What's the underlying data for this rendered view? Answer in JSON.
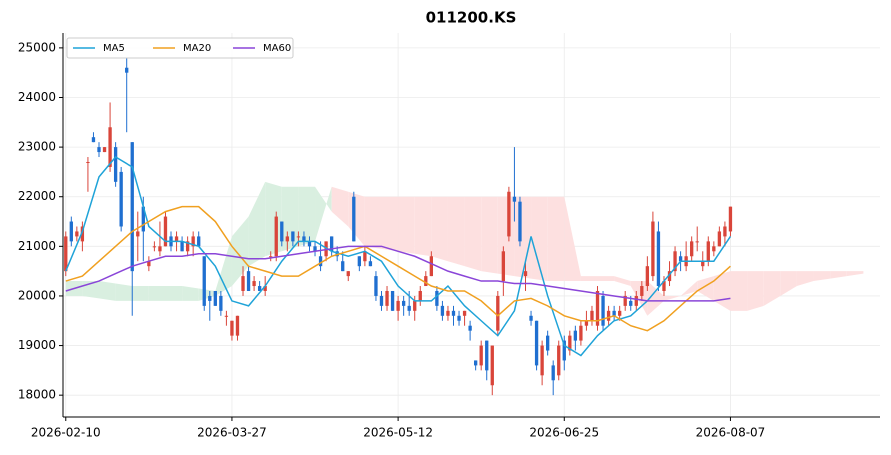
{
  "chart_data": {
    "type": "candlestick",
    "title": "011200.KS",
    "up_color": "#d9453a",
    "down_color": "#1f6fd0",
    "grid": true,
    "legend": "upper left",
    "xlim": [
      -0.5,
      147
    ],
    "ylim": [
      17560,
      25300
    ],
    "yticks": [
      18000,
      19000,
      20000,
      21000,
      22000,
      23000,
      24000,
      25000
    ],
    "xticks": [
      {
        "value": 0,
        "label": "2026-02-10"
      },
      {
        "value": 30,
        "label": "2026-03-27"
      },
      {
        "value": 60,
        "label": "2026-05-12"
      },
      {
        "value": 90,
        "label": "2026-06-25"
      },
      {
        "value": 120,
        "label": "2026-08-07"
      }
    ],
    "candles": [
      [
        20500,
        21300,
        20400,
        21200
      ],
      [
        21500,
        21600,
        21000,
        21100
      ],
      [
        21200,
        21400,
        21100,
        21300
      ],
      [
        21100,
        21500,
        20900,
        21400
      ],
      [
        22700,
        22800,
        22100,
        22700
      ],
      [
        23200,
        23300,
        23100,
        23100
      ],
      [
        23000,
        23100,
        22800,
        22900
      ],
      [
        22900,
        23000,
        22900,
        23000
      ],
      [
        22600,
        23900,
        22500,
        23400
      ],
      [
        23000,
        23100,
        22200,
        22300
      ],
      [
        22500,
        22600,
        21300,
        21400
      ],
      [
        24600,
        24800,
        23300,
        24500
      ],
      [
        23100,
        23100,
        19600,
        20500
      ],
      [
        21200,
        21700,
        20700,
        21300
      ],
      [
        21800,
        22000,
        20700,
        21300
      ],
      [
        20600,
        20800,
        20500,
        20700
      ],
      [
        21000,
        21100,
        20900,
        21000
      ],
      [
        20900,
        21500,
        20800,
        21000
      ],
      [
        21000,
        21700,
        21000,
        21600
      ],
      [
        21200,
        21300,
        20900,
        21000
      ],
      [
        21100,
        21300,
        20900,
        21200
      ],
      [
        21100,
        21200,
        20900,
        20900
      ],
      [
        20900,
        21200,
        20800,
        21100
      ],
      [
        21000,
        21300,
        20800,
        21200
      ],
      [
        21200,
        21300,
        21000,
        21000
      ],
      [
        20800,
        20800,
        19700,
        19800
      ],
      [
        20000,
        20100,
        19500,
        19900
      ],
      [
        20100,
        20100,
        19800,
        19800
      ],
      [
        20000,
        20100,
        19600,
        19700
      ],
      [
        19600,
        19700,
        19400,
        19600
      ],
      [
        19200,
        19500,
        19100,
        19500
      ],
      [
        19200,
        19600,
        19100,
        19600
      ],
      [
        20100,
        20600,
        20000,
        20400
      ],
      [
        20500,
        20600,
        20100,
        20100
      ],
      [
        20200,
        20400,
        20100,
        20300
      ],
      [
        20200,
        20300,
        20100,
        20100
      ],
      [
        20100,
        20400,
        20000,
        20200
      ],
      [
        20800,
        20900,
        20700,
        20800
      ],
      [
        20800,
        21700,
        20700,
        21600
      ],
      [
        21500,
        21500,
        21000,
        21100
      ],
      [
        21100,
        21300,
        20900,
        21200
      ],
      [
        21300,
        21300,
        21000,
        21100
      ],
      [
        21200,
        21300,
        21000,
        21200
      ],
      [
        21200,
        21300,
        21000,
        21100
      ],
      [
        21100,
        21200,
        20900,
        21000
      ],
      [
        21000,
        21100,
        20800,
        20900
      ],
      [
        20800,
        21100,
        20500,
        20600
      ],
      [
        20800,
        21100,
        20700,
        21100
      ],
      [
        21200,
        21200,
        20800,
        20900
      ],
      [
        20900,
        21000,
        20700,
        20800
      ],
      [
        20700,
        20900,
        20500,
        20500
      ],
      [
        20400,
        20500,
        20300,
        20500
      ],
      [
        22000,
        22100,
        21100,
        21100
      ],
      [
        20800,
        20800,
        20500,
        20600
      ],
      [
        20700,
        21000,
        20600,
        20900
      ],
      [
        20700,
        20800,
        20600,
        20600
      ],
      [
        20400,
        20500,
        19900,
        20000
      ],
      [
        20000,
        20100,
        19700,
        19800
      ],
      [
        19800,
        20200,
        19700,
        20100
      ],
      [
        20100,
        20100,
        19700,
        19700
      ],
      [
        19700,
        20000,
        19500,
        19900
      ],
      [
        19900,
        20000,
        19600,
        19800
      ],
      [
        19800,
        20100,
        19600,
        19700
      ],
      [
        19700,
        20000,
        19500,
        19900
      ],
      [
        19900,
        20200,
        19800,
        20100
      ],
      [
        20200,
        20500,
        20200,
        20400
      ],
      [
        20400,
        20900,
        20400,
        20800
      ],
      [
        20100,
        20200,
        19700,
        19800
      ],
      [
        19800,
        19900,
        19500,
        19600
      ],
      [
        19600,
        19800,
        19500,
        19700
      ],
      [
        19700,
        19800,
        19400,
        19600
      ],
      [
        19600,
        19700,
        19400,
        19500
      ],
      [
        19600,
        19700,
        19400,
        19700
      ],
      [
        19400,
        19500,
        19100,
        19300
      ],
      [
        18700,
        18700,
        18500,
        18600
      ],
      [
        18600,
        19100,
        18500,
        19000
      ],
      [
        19100,
        19100,
        18300,
        18500
      ],
      [
        18200,
        19000,
        18000,
        19000
      ],
      [
        19300,
        20100,
        19200,
        20000
      ],
      [
        20300,
        21000,
        20000,
        20900
      ],
      [
        21200,
        22200,
        21100,
        22100
      ],
      [
        22000,
        23000,
        21500,
        21900
      ],
      [
        21900,
        22000,
        21000,
        21100
      ],
      [
        20400,
        20700,
        20100,
        20500
      ],
      [
        19600,
        19700,
        19400,
        19500
      ],
      [
        19500,
        19500,
        18500,
        18600
      ],
      [
        18400,
        19100,
        18200,
        19000
      ],
      [
        19200,
        19300,
        18800,
        18900
      ],
      [
        18600,
        18700,
        18000,
        18300
      ],
      [
        18400,
        19100,
        18300,
        19000
      ],
      [
        19100,
        19200,
        18500,
        18700
      ],
      [
        18900,
        19300,
        18800,
        19200
      ],
      [
        19300,
        19400,
        18900,
        19100
      ],
      [
        19100,
        19500,
        19000,
        19400
      ],
      [
        19400,
        19700,
        19300,
        19500
      ],
      [
        19500,
        19800,
        19400,
        19700
      ],
      [
        19400,
        20200,
        19300,
        20100
      ],
      [
        20000,
        20100,
        19300,
        19400
      ],
      [
        19500,
        19800,
        19400,
        19700
      ],
      [
        19700,
        19800,
        19500,
        19600
      ],
      [
        19600,
        19800,
        19500,
        19700
      ],
      [
        19800,
        20100,
        19700,
        20000
      ],
      [
        19900,
        20000,
        19700,
        19800
      ],
      [
        19800,
        20100,
        19700,
        20000
      ],
      [
        20000,
        20300,
        19900,
        20200
      ],
      [
        20200,
        20800,
        20100,
        20600
      ],
      [
        20400,
        21700,
        20300,
        21500
      ],
      [
        21300,
        21500,
        20100,
        20200
      ],
      [
        20100,
        20400,
        20000,
        20300
      ],
      [
        20300,
        20700,
        20200,
        20500
      ],
      [
        20500,
        21000,
        20400,
        20900
      ],
      [
        20800,
        20900,
        20500,
        20700
      ],
      [
        20600,
        21100,
        20500,
        20800
      ],
      [
        20800,
        21200,
        20700,
        21100
      ],
      [
        21100,
        21400,
        20900,
        21100
      ],
      [
        20600,
        20900,
        20500,
        20700
      ],
      [
        20700,
        21200,
        20600,
        21100
      ],
      [
        20900,
        21100,
        20800,
        21000
      ],
      [
        21000,
        21400,
        21000,
        21300
      ],
      [
        21200,
        21500,
        21000,
        21400
      ],
      [
        21300,
        21800,
        21200,
        21800
      ]
    ],
    "ma_x": [
      0,
      3,
      6,
      9,
      12,
      15,
      18,
      21,
      24,
      27,
      30,
      33,
      36,
      39,
      42,
      45,
      48,
      51,
      54,
      57,
      60,
      63,
      66,
      69,
      72,
      75,
      78,
      81,
      84,
      87,
      90,
      93,
      96,
      99,
      102,
      105,
      108,
      111,
      114,
      117,
      120
    ],
    "series": [
      {
        "name": "MA5",
        "color": "#1fa3d8",
        "values": [
          20500,
          21300,
          22400,
          22800,
          22600,
          21400,
          21100,
          21100,
          21000,
          20600,
          19900,
          19800,
          20200,
          20700,
          21100,
          21100,
          20900,
          20800,
          20900,
          20700,
          20200,
          19900,
          19900,
          20200,
          19800,
          19500,
          19200,
          19700,
          21200,
          20000,
          19000,
          18800,
          19200,
          19500,
          19600,
          19900,
          20300,
          20700,
          20700,
          20700,
          21200
        ]
      },
      {
        "name": "MA20",
        "color": "#f0a020",
        "values": [
          20300,
          20400,
          20700,
          21000,
          21300,
          21500,
          21700,
          21800,
          21800,
          21500,
          21000,
          20600,
          20500,
          20400,
          20400,
          20600,
          20800,
          20900,
          21000,
          20800,
          20600,
          20400,
          20200,
          20100,
          20100,
          19900,
          19600,
          19900,
          19950,
          19800,
          19600,
          19500,
          19500,
          19600,
          19400,
          19300,
          19500,
          19800,
          20100,
          20300,
          20600
        ]
      },
      {
        "name": "MA60",
        "color": "#8a45d8",
        "values": [
          20100,
          20200,
          20300,
          20450,
          20600,
          20700,
          20800,
          20800,
          20850,
          20850,
          20800,
          20750,
          20750,
          20800,
          20850,
          20900,
          20950,
          21000,
          21000,
          21000,
          20900,
          20800,
          20650,
          20500,
          20400,
          20300,
          20300,
          20250,
          20250,
          20200,
          20150,
          20100,
          20050,
          20000,
          19950,
          19900,
          19900,
          19900,
          19900,
          19900,
          19950
        ]
      }
    ],
    "cloud": {
      "bull_color": "#d9efe0",
      "bear_color": "#fde0e0",
      "x": [
        0,
        3,
        6,
        9,
        12,
        15,
        18,
        21,
        24,
        27,
        30,
        33,
        36,
        39,
        42,
        45,
        48,
        51,
        54,
        57,
        60,
        63,
        66,
        69,
        72,
        75,
        78,
        81,
        84,
        87,
        90,
        93,
        96,
        99,
        102,
        105,
        108,
        111,
        114,
        117,
        120,
        123,
        126,
        129,
        132,
        135,
        138,
        141,
        144
      ],
      "span_a": [
        20300,
        20300,
        20300,
        20250,
        20200,
        20200,
        20200,
        20200,
        20150,
        20100,
        21200,
        21600,
        22300,
        22200,
        22200,
        22200,
        21700,
        21400,
        21000,
        20950,
        20900,
        20850,
        20800,
        20700,
        20600,
        20500,
        20450,
        20400,
        20350,
        20300,
        20300,
        20300,
        20300,
        20300,
        20200,
        19600,
        19900,
        20000,
        20100,
        19900,
        19700,
        19700,
        19800,
        20000,
        20200,
        20300,
        20350,
        20400,
        20450
      ],
      "span_b": [
        20000,
        20000,
        19950,
        19900,
        19900,
        19900,
        19900,
        19900,
        19900,
        20000,
        20200,
        20600,
        20800,
        20900,
        21000,
        21100,
        22200,
        22100,
        22000,
        22000,
        22000,
        22000,
        22000,
        22000,
        22000,
        22000,
        22000,
        22000,
        22000,
        22000,
        22000,
        20400,
        20400,
        20400,
        20300,
        20300,
        20000,
        20000,
        20300,
        20400,
        20500,
        20500,
        20500,
        20500,
        20500,
        20500,
        20500,
        20500,
        20500
      ]
    }
  }
}
